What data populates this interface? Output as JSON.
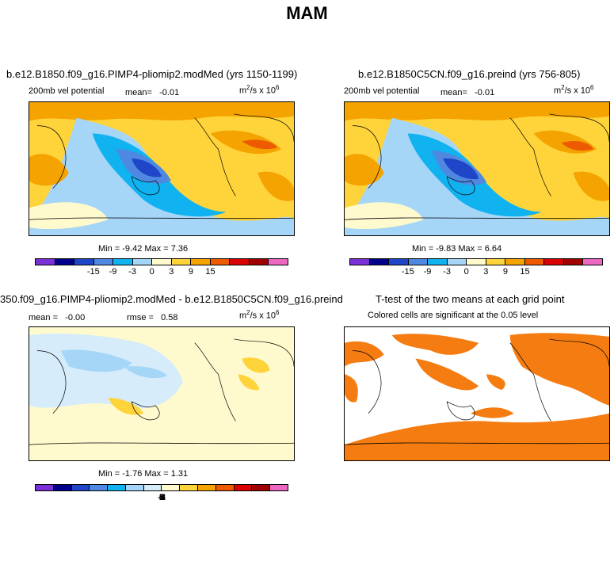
{
  "title": "MAM",
  "panels": [
    {
      "title": "b.e12.B1850.f09_g16.PIMP4-pliomip2.modMed (yrs 1150-1199)",
      "left_label": "200mb vel potential",
      "mean_label": "mean=",
      "mean_value": "-0.01",
      "units": "m",
      "units_rest": "/s x 10",
      "min_text": "Min = -9.42 Max = 7.36",
      "colorbar_ticks": [
        "-15",
        "-9",
        "-3",
        "0",
        "3",
        "9",
        "15"
      ]
    },
    {
      "title": "b.e12.B1850C5CN.f09_g16.preind (yrs 756-805)",
      "left_label": "200mb vel potential",
      "mean_label": "mean=",
      "mean_value": "-0.01",
      "units": "m",
      "units_rest": "/s x 10",
      "min_text": "Min = -9.83 Max = 6.64",
      "colorbar_ticks": [
        "-15",
        "-9",
        "-3",
        "0",
        "3",
        "9",
        "15"
      ]
    },
    {
      "title": "350.f09_g16.PIMP4-pliomip2.modMed - b.e12.B1850C5CN.f09_g16.preind",
      "mean_label": "mean =",
      "mean_value": "-0.00",
      "rmse_label": "rmse =",
      "rmse_value": "0.58",
      "units": "m",
      "units_rest": "/s x 10",
      "min_text": "Min = -1.76 Max = 1.31",
      "colorbar_ticks": [
        "-8",
        "-6",
        "-5",
        "-4",
        "-3",
        "-2",
        "-1",
        "0",
        "1",
        "2",
        "3",
        "4",
        "5",
        "6",
        "8"
      ]
    },
    {
      "title": "T-test of the two means at each grid point",
      "subtitle": "Colored cells are significant at the 0.05 level"
    }
  ],
  "exp_sq": "2",
  "exp_6": "6",
  "colors": {
    "scale12": [
      "#7b2fd6",
      "#00008b",
      "#1f45c8",
      "#4f88e0",
      "#11b2f0",
      "#a6d6f7",
      "#fffacd",
      "#ffd43a",
      "#f5a300",
      "#ee5a00",
      "#d90000",
      "#a00000",
      "#ee68c3"
    ],
    "scale16": [
      "#7b2fd6",
      "#00008b",
      "#1f45c8",
      "#4f88e0",
      "#11b2f0",
      "#a6d6f7",
      "#d6ecfb",
      "#fffacd",
      "#ffd43a",
      "#f5a300",
      "#ee5a00",
      "#d90000",
      "#a00000",
      "#ee68c3"
    ],
    "significance": "#f57c10"
  }
}
